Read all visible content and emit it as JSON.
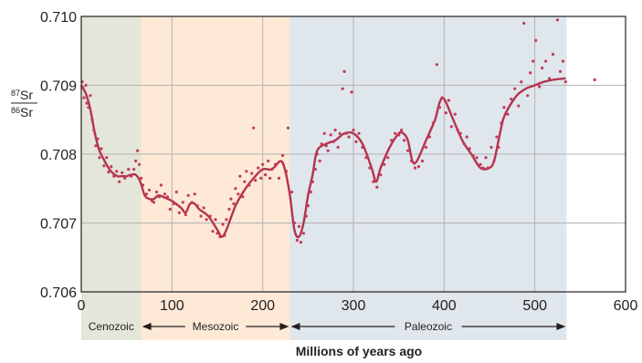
{
  "chart_data": {
    "type": "scatter",
    "title": "",
    "xlabel": "Millions of years ago",
    "ylabel": {
      "numerator_sup": "87",
      "numerator": "Sr",
      "denominator_sup": "86",
      "denominator": "Sr"
    },
    "xlim": [
      0,
      600
    ],
    "ylim": [
      0.706,
      0.71
    ],
    "x_ticks": [
      0,
      100,
      200,
      300,
      400,
      500,
      600
    ],
    "y_ticks": [
      0.706,
      0.707,
      0.708,
      0.709,
      0.71
    ],
    "x_tick_labels": [
      "0",
      "100",
      "200",
      "300",
      "400",
      "500",
      "600"
    ],
    "y_tick_labels": [
      "0.706",
      "0.707",
      "0.708",
      "0.709",
      "0.710"
    ],
    "grid": true,
    "eras": [
      {
        "name": "Cenozoic",
        "start": 0,
        "end": 66,
        "color": "#e3e6d9",
        "arrow_left": false,
        "arrow_right": false
      },
      {
        "name": "Mesozoic",
        "start": 66,
        "end": 230,
        "color": "#fde9d6",
        "arrow_left": true,
        "arrow_right": true
      },
      {
        "name": "Paleozoic",
        "start": 230,
        "end": 535,
        "color": "#dfe6ec",
        "arrow_left": true,
        "arrow_right": true
      }
    ],
    "series": [
      {
        "kind": "trend-line",
        "color": "#b5334f",
        "x": [
          0,
          5,
          10,
          15,
          20,
          25,
          30,
          35,
          40,
          45,
          50,
          55,
          60,
          65,
          70,
          75,
          80,
          85,
          90,
          100,
          110,
          115,
          120,
          125,
          130,
          140,
          150,
          155,
          160,
          170,
          180,
          190,
          200,
          210,
          220,
          225,
          230,
          235,
          240,
          245,
          250,
          255,
          260,
          270,
          280,
          290,
          300,
          310,
          320,
          325,
          330,
          340,
          350,
          355,
          360,
          365,
          370,
          380,
          390,
          395,
          400,
          410,
          420,
          430,
          440,
          450,
          455,
          460,
          465,
          470,
          480,
          490,
          500,
          510,
          520,
          534
        ],
        "y": [
          0.709,
          0.70888,
          0.70865,
          0.7083,
          0.70805,
          0.70792,
          0.7078,
          0.70772,
          0.70768,
          0.70768,
          0.70768,
          0.7077,
          0.7077,
          0.7076,
          0.7074,
          0.70735,
          0.70735,
          0.7074,
          0.70738,
          0.70732,
          0.70722,
          0.70715,
          0.70728,
          0.70728,
          0.7072,
          0.7071,
          0.7069,
          0.7068,
          0.7069,
          0.70725,
          0.70748,
          0.70765,
          0.70778,
          0.70778,
          0.7079,
          0.70775,
          0.7074,
          0.7069,
          0.7068,
          0.707,
          0.7074,
          0.7077,
          0.70805,
          0.70815,
          0.7082,
          0.7083,
          0.7083,
          0.70815,
          0.7078,
          0.7076,
          0.7078,
          0.7081,
          0.7083,
          0.7083,
          0.7082,
          0.7079,
          0.7079,
          0.7082,
          0.7085,
          0.70875,
          0.7088,
          0.7085,
          0.7082,
          0.708,
          0.7078,
          0.7078,
          0.7079,
          0.7082,
          0.7085,
          0.70865,
          0.70885,
          0.70895,
          0.709,
          0.70905,
          0.70908,
          0.7091
        ]
      },
      {
        "kind": "samples",
        "color": "#c23a5a",
        "points": [
          [
            1,
            0.70905
          ],
          [
            2,
            0.70896
          ],
          [
            3,
            0.70882
          ],
          [
            5,
            0.709
          ],
          [
            6,
            0.70874
          ],
          [
            8,
            0.70868
          ],
          [
            10,
            0.70885
          ],
          [
            12,
            0.7085
          ],
          [
            14,
            0.70835
          ],
          [
            16,
            0.70812
          ],
          [
            18,
            0.70822
          ],
          [
            20,
            0.70795
          ],
          [
            22,
            0.70808
          ],
          [
            25,
            0.70783
          ],
          [
            28,
            0.70795
          ],
          [
            30,
            0.70774
          ],
          [
            33,
            0.70782
          ],
          [
            36,
            0.70768
          ],
          [
            39,
            0.70775
          ],
          [
            42,
            0.7076
          ],
          [
            45,
            0.70773
          ],
          [
            48,
            0.70765
          ],
          [
            52,
            0.70778
          ],
          [
            55,
            0.70768
          ],
          [
            58,
            0.70778
          ],
          [
            60,
            0.7079
          ],
          [
            62,
            0.70805
          ],
          [
            64,
            0.70785
          ],
          [
            66,
            0.70765
          ],
          [
            68,
            0.70755
          ],
          [
            72,
            0.70742
          ],
          [
            75,
            0.70748
          ],
          [
            78,
            0.70732
          ],
          [
            80,
            0.7073
          ],
          [
            83,
            0.70745
          ],
          [
            86,
            0.70738
          ],
          [
            88,
            0.70755
          ],
          [
            92,
            0.70742
          ],
          [
            95,
            0.70738
          ],
          [
            98,
            0.7072
          ],
          [
            102,
            0.70728
          ],
          [
            105,
            0.70745
          ],
          [
            108,
            0.70715
          ],
          [
            112,
            0.7073
          ],
          [
            115,
            0.70712
          ],
          [
            118,
            0.7074
          ],
          [
            122,
            0.7073
          ],
          [
            125,
            0.70742
          ],
          [
            128,
            0.70725
          ],
          [
            132,
            0.7071
          ],
          [
            135,
            0.70722
          ],
          [
            138,
            0.70705
          ],
          [
            142,
            0.7071
          ],
          [
            145,
            0.70688
          ],
          [
            148,
            0.70705
          ],
          [
            150,
            0.70685
          ],
          [
            153,
            0.7068
          ],
          [
            156,
            0.70698
          ],
          [
            158,
            0.70682
          ],
          [
            160,
            0.70705
          ],
          [
            163,
            0.7072
          ],
          [
            165,
            0.70735
          ],
          [
            168,
            0.70728
          ],
          [
            170,
            0.7075
          ],
          [
            173,
            0.70742
          ],
          [
            175,
            0.70768
          ],
          [
            178,
            0.70738
          ],
          [
            180,
            0.7076
          ],
          [
            182,
            0.70775
          ],
          [
            185,
            0.70755
          ],
          [
            188,
            0.70772
          ],
          [
            190,
            0.70838
          ],
          [
            192,
            0.70762
          ],
          [
            195,
            0.7078
          ],
          [
            198,
            0.70765
          ],
          [
            200,
            0.70785
          ],
          [
            203,
            0.7077
          ],
          [
            206,
            0.7079
          ],
          [
            208,
            0.70765
          ],
          [
            210,
            0.70778
          ],
          [
            214,
            0.70785
          ],
          [
            218,
            0.70765
          ],
          [
            222,
            0.70798
          ],
          [
            226,
            0.70775
          ],
          [
            228,
            0.70838
          ],
          [
            232,
            0.70745
          ],
          [
            235,
            0.707
          ],
          [
            238,
            0.70675
          ],
          [
            240,
            0.70695
          ],
          [
            242,
            0.70672
          ],
          [
            245,
            0.70685
          ],
          [
            248,
            0.7071
          ],
          [
            250,
            0.70725
          ],
          [
            253,
            0.70745
          ],
          [
            255,
            0.7076
          ],
          [
            258,
            0.70778
          ],
          [
            260,
            0.708
          ],
          [
            263,
            0.7079
          ],
          [
            265,
            0.70815
          ],
          [
            268,
            0.7083
          ],
          [
            270,
            0.70812
          ],
          [
            272,
            0.70805
          ],
          [
            275,
            0.70828
          ],
          [
            278,
            0.70818
          ],
          [
            280,
            0.70835
          ],
          [
            283,
            0.7081
          ],
          [
            285,
            0.7083
          ],
          [
            288,
            0.70895
          ],
          [
            290,
            0.7092
          ],
          [
            292,
            0.7083
          ],
          [
            295,
            0.70825
          ],
          [
            298,
            0.7089
          ],
          [
            300,
            0.70835
          ],
          [
            303,
            0.70818
          ],
          [
            306,
            0.7083
          ],
          [
            310,
            0.7081
          ],
          [
            314,
            0.70795
          ],
          [
            318,
            0.7078
          ],
          [
            322,
            0.7076
          ],
          [
            326,
            0.70752
          ],
          [
            330,
            0.7077
          ],
          [
            334,
            0.70785
          ],
          [
            338,
            0.70795
          ],
          [
            342,
            0.7082
          ],
          [
            346,
            0.7083
          ],
          [
            350,
            0.70828
          ],
          [
            353,
            0.70835
          ],
          [
            356,
            0.7082
          ],
          [
            360,
            0.70805
          ],
          [
            364,
            0.7079
          ],
          [
            368,
            0.7078
          ],
          [
            372,
            0.70782
          ],
          [
            376,
            0.7079
          ],
          [
            380,
            0.7081
          ],
          [
            384,
            0.70825
          ],
          [
            388,
            0.70845
          ],
          [
            392,
            0.7093
          ],
          [
            395,
            0.70868
          ],
          [
            398,
            0.70882
          ],
          [
            402,
            0.7086
          ],
          [
            405,
            0.70878
          ],
          [
            408,
            0.7084
          ],
          [
            412,
            0.70858
          ],
          [
            415,
            0.70835
          ],
          [
            418,
            0.7083
          ],
          [
            422,
            0.70815
          ],
          [
            425,
            0.70825
          ],
          [
            428,
            0.70808
          ],
          [
            432,
            0.70798
          ],
          [
            436,
            0.70795
          ],
          [
            440,
            0.70785
          ],
          [
            443,
            0.7078
          ],
          [
            446,
            0.70795
          ],
          [
            448,
            0.7078
          ],
          [
            452,
            0.7081
          ],
          [
            455,
            0.7079
          ],
          [
            458,
            0.70825
          ],
          [
            460,
            0.7081
          ],
          [
            463,
            0.70845
          ],
          [
            466,
            0.70868
          ],
          [
            470,
            0.70858
          ],
          [
            474,
            0.7088
          ],
          [
            478,
            0.70895
          ],
          [
            482,
            0.7087
          ],
          [
            485,
            0.70905
          ],
          [
            488,
            0.7099
          ],
          [
            492,
            0.70885
          ],
          [
            495,
            0.70918
          ],
          [
            498,
            0.70935
          ],
          [
            501,
            0.70965
          ],
          [
            505,
            0.70898
          ],
          [
            508,
            0.70925
          ],
          [
            512,
            0.70935
          ],
          [
            516,
            0.7091
          ],
          [
            520,
            0.70945
          ],
          [
            525,
            0.70995
          ],
          [
            528,
            0.7092
          ],
          [
            531,
            0.70935
          ],
          [
            534,
            0.70905
          ],
          [
            566,
            0.70908
          ]
        ]
      }
    ]
  }
}
